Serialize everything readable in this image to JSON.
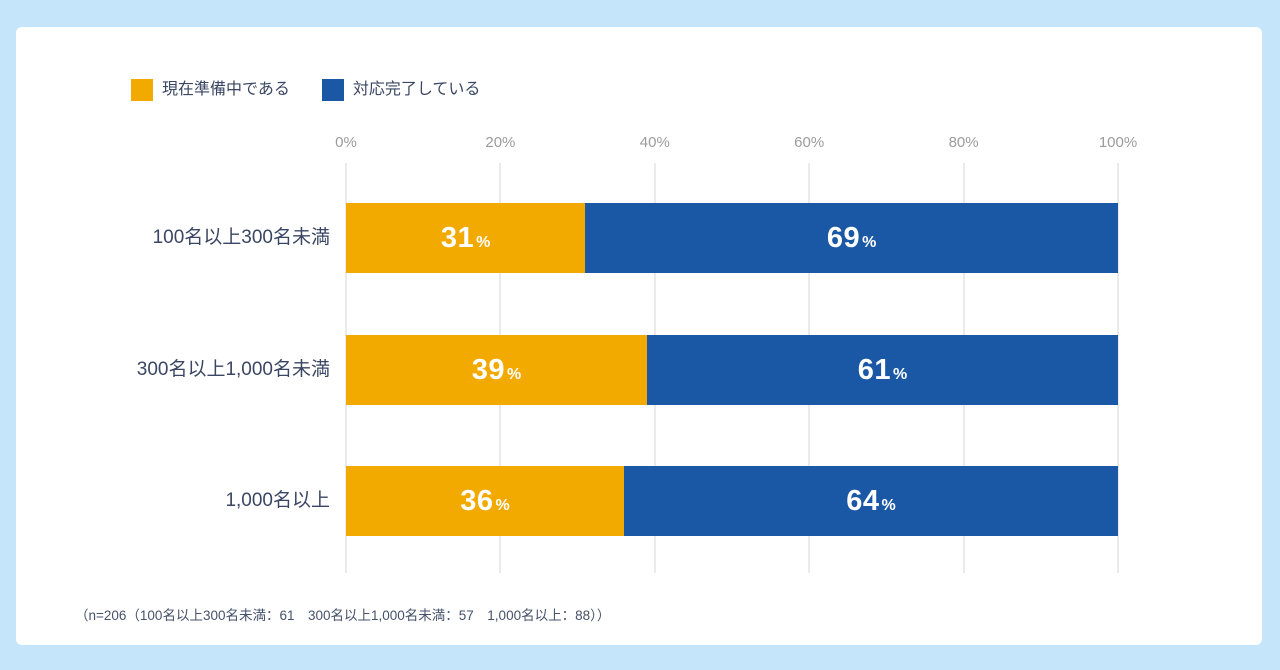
{
  "page": {
    "background": "#C5E6FA",
    "card_background": "#FFFFFF"
  },
  "chart_data": {
    "type": "bar",
    "orientation": "horizontal",
    "stacked": true,
    "title": "",
    "categories": [
      "100名以上300名未満",
      "300名以上1,000名未満",
      "1,000名以上"
    ],
    "series": [
      {
        "name": "現在準備中である",
        "color": "#F2A900",
        "values": [
          31,
          39,
          36
        ]
      },
      {
        "name": "対応完了している",
        "color": "#1A58A6",
        "values": [
          69,
          61,
          64
        ]
      }
    ],
    "unit": "%",
    "x_ticks": [
      "0%",
      "20%",
      "40%",
      "60%",
      "80%",
      "100%"
    ],
    "xlim": [
      0,
      100
    ],
    "grid": true,
    "gridline_color": "#D6D6D6",
    "value_label_color": "#FFFFFF",
    "category_label_color": "#3A4663",
    "tick_label_color": "#9B9B9B",
    "legend_position": "top-left"
  },
  "footnote": "（n=206（100名以上300名未満：61　300名以上1,000名未満：57　1,000名以上：88））"
}
